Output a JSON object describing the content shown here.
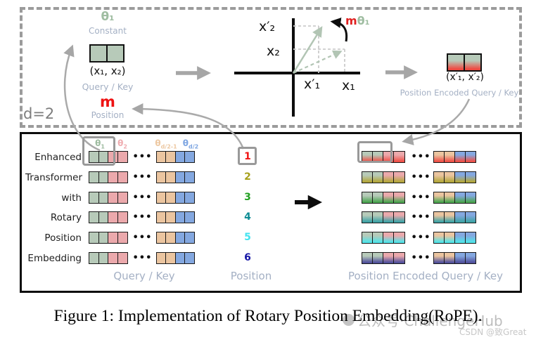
{
  "figure": {
    "caption": "Figure 1: Implementation of Rotary Position Embedding(RoPE)."
  },
  "watermark": {
    "brand": "公众号·ChallengeHub",
    "csdn": "CSDN @致Great"
  },
  "top_panel": {
    "dimension_label": "d=2",
    "theta_constant": {
      "label": "θ₁",
      "caption": "Constant"
    },
    "input_vector": {
      "tuple": "(x₁, x₂)",
      "caption": "Query / Key"
    },
    "m_position": {
      "label": "m",
      "caption": "Position"
    },
    "rotation_plot": {
      "x2_rotated": "x′₂",
      "x2": "x₂",
      "x1_rotated": "x′₁",
      "x1": "x₁",
      "angle": {
        "m": "m",
        "theta": "θ₁"
      }
    },
    "output_vector": {
      "tuple": "(x′₁, x′₂)",
      "caption": "Position Encoded Query / Key"
    }
  },
  "bottom_panel": {
    "words": [
      "Enhanced",
      "Transformer",
      "with",
      "Rotary",
      "Position",
      "Embedding"
    ],
    "theta_headers": [
      {
        "base": "θ",
        "sub": "1",
        "color": "#9dbb9f"
      },
      {
        "base": "θ",
        "sub": "2",
        "color": "#efacb0"
      },
      {
        "base": "θ",
        "sub": "d/2-1",
        "color": "#edc8a2"
      },
      {
        "base": "θ",
        "sub": "d/2",
        "color": "#7ea6e2"
      }
    ],
    "dots": "•••",
    "positions": [
      {
        "label": "1",
        "color": "#f01414"
      },
      {
        "label": "2",
        "color": "#a6a01b"
      },
      {
        "label": "3",
        "color": "#22a022"
      },
      {
        "label": "4",
        "color": "#0d8c94"
      },
      {
        "label": "5",
        "color": "#42e3ef"
      },
      {
        "label": "6",
        "color": "#1515a6"
      }
    ],
    "gradient_colors": [
      "#ef5148",
      "#b3a73c",
      "#4ba550",
      "#3fa3a6",
      "#52e4e9",
      "#50509b"
    ],
    "cell_colors": {
      "green": "#b7cab9",
      "pink": "#eba9ac",
      "orange": "#ebc5a0",
      "blue": "#84a8e0"
    },
    "labels": {
      "query_key": "Query / Key",
      "position": "Position",
      "encoded": "Position Encoded Query / Key"
    }
  }
}
